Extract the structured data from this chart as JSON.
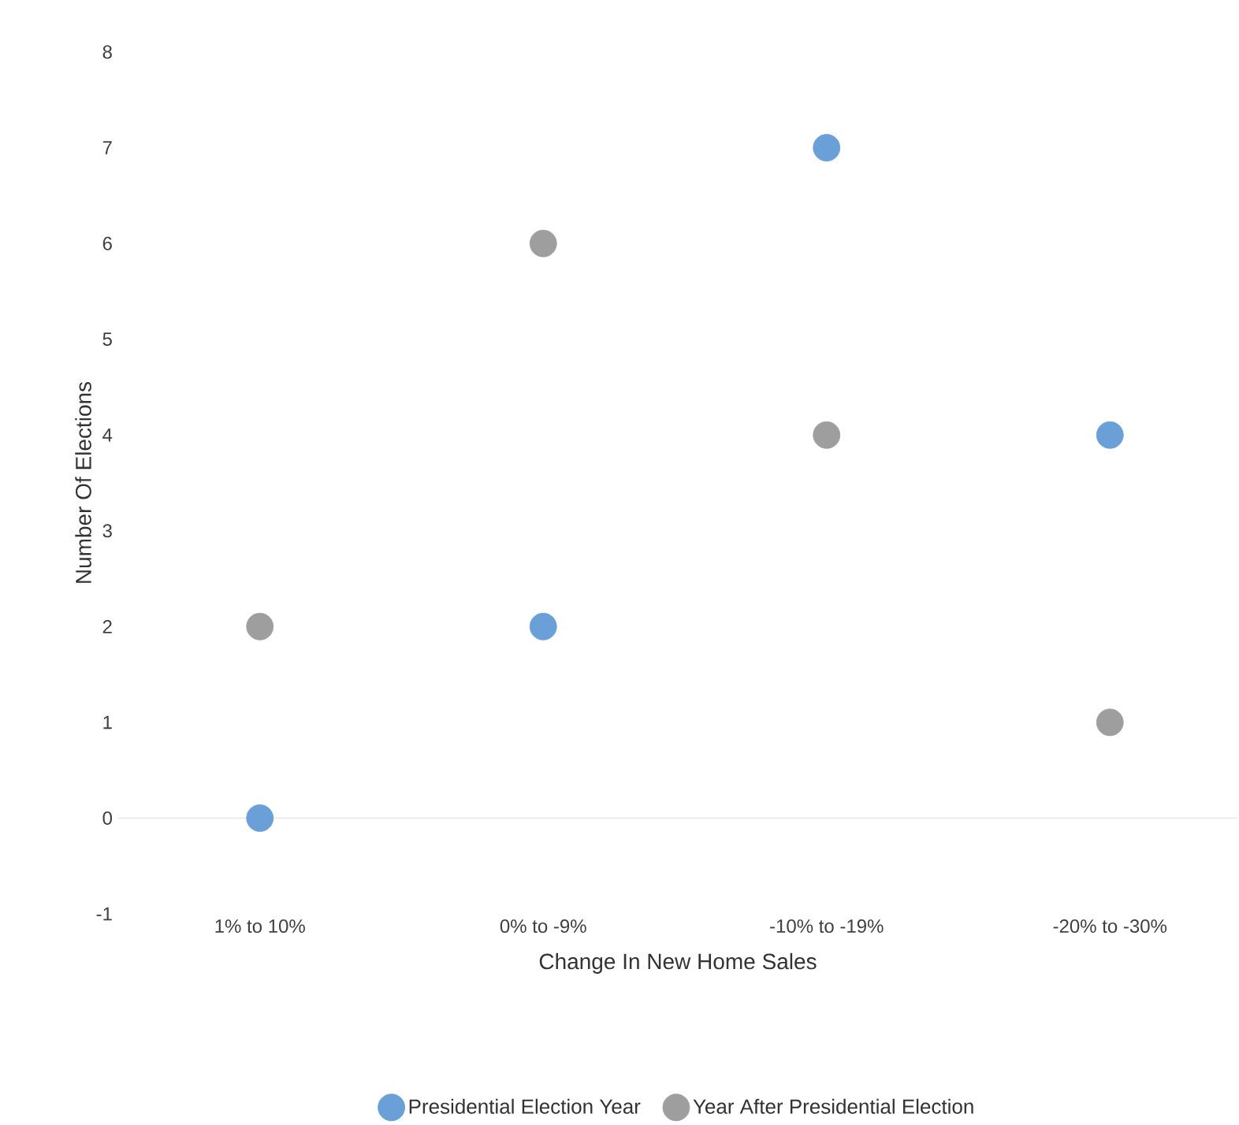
{
  "chart_data": {
    "type": "scatter",
    "xlabel": "Change In New Home Sales",
    "ylabel": "Number Of Elections",
    "categories": [
      "1% to 10%",
      "0% to -9%",
      "-10% to -19%",
      "-20% to -30%"
    ],
    "series": [
      {
        "name": "Presidential Election Year",
        "color": "#6a9fd8",
        "values": [
          0,
          2,
          7,
          4
        ]
      },
      {
        "name": "Year After Presidential Election",
        "color": "#9e9e9e",
        "values": [
          2,
          6,
          4,
          1
        ]
      }
    ],
    "ylim": [
      -1,
      8
    ],
    "yticks": [
      -1,
      0,
      1,
      2,
      3,
      4,
      5,
      6,
      7,
      8
    ],
    "grid": false,
    "legend": "bottom",
    "marker": "circle",
    "ref_lines": [
      {
        "axis": "y",
        "value": 0,
        "color": "#d9d9d9"
      }
    ]
  }
}
